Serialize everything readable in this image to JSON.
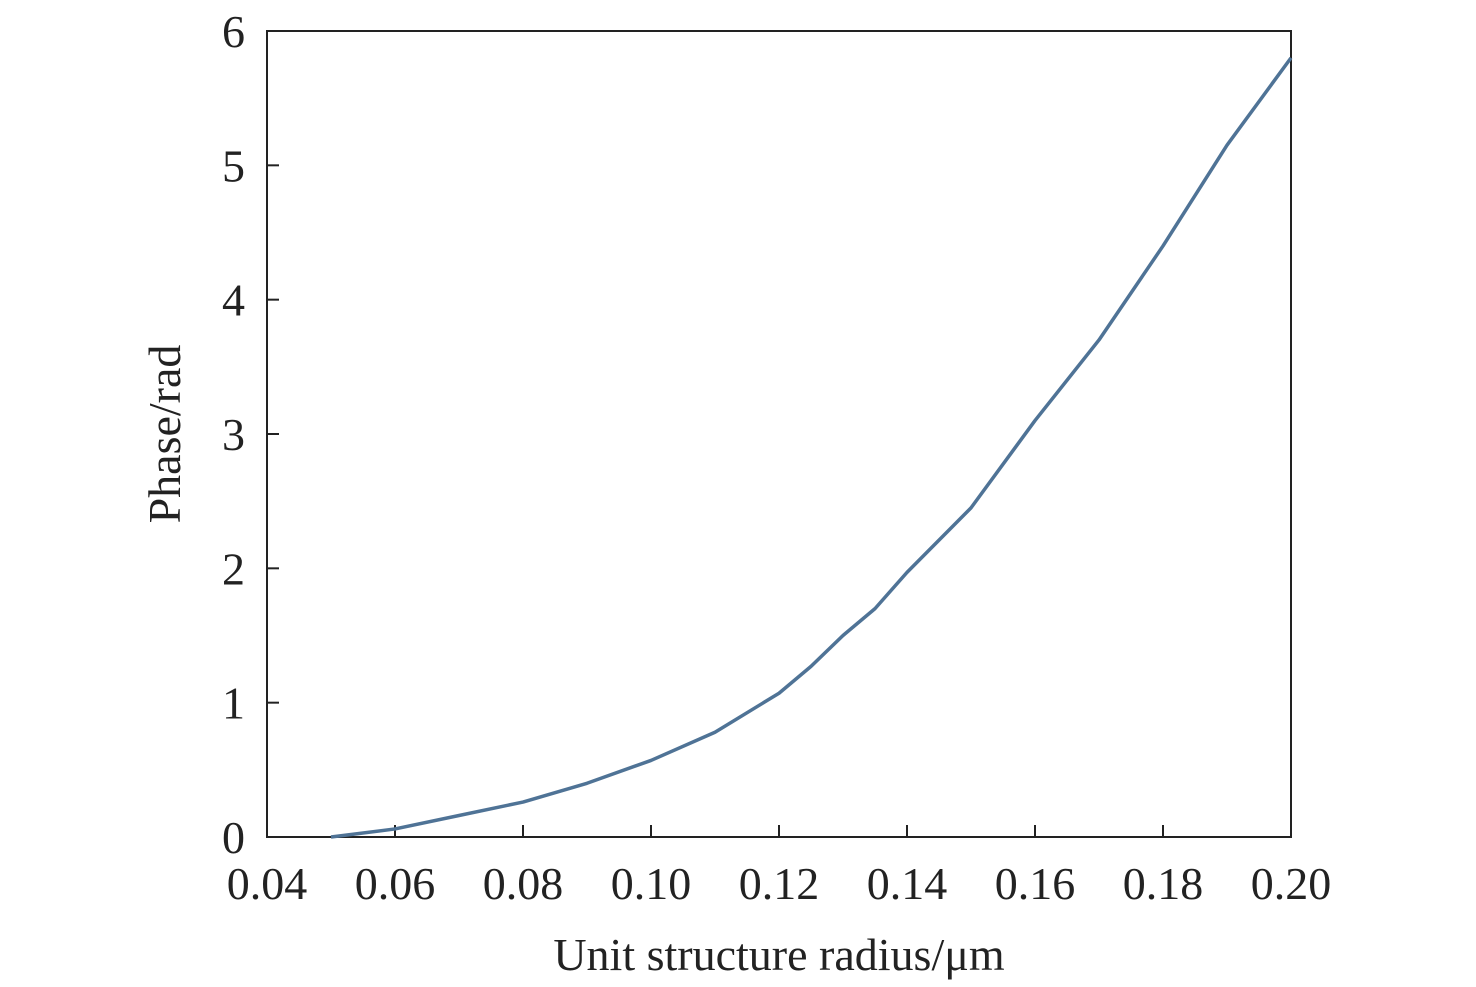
{
  "chart_data": {
    "type": "line",
    "x_label": "Unit structure radius/μm",
    "y_label": "Phase/rad",
    "x": [
      0.05,
      0.06,
      0.07,
      0.08,
      0.09,
      0.1,
      0.11,
      0.12,
      0.125,
      0.13,
      0.135,
      0.14,
      0.15,
      0.16,
      0.17,
      0.18,
      0.19,
      0.2
    ],
    "series": [
      {
        "color": "#4f7396",
        "values": [
          0,
          0.06,
          0.16,
          0.26,
          0.4,
          0.57,
          0.78,
          1.07,
          1.27,
          1.5,
          1.7,
          1.97,
          2.45,
          3.1,
          3.7,
          4.4,
          5.15,
          5.8
        ]
      }
    ],
    "xlim": [
      0.04,
      0.2
    ],
    "ylim": [
      0,
      6
    ],
    "xticks": [
      0.04,
      0.06,
      0.08,
      {
        "value": 0.1,
        "label": "0.10"
      },
      0.12,
      0.14,
      0.16,
      0.18,
      {
        "value": 0.2,
        "label": "0.20"
      }
    ],
    "yticks": [
      0,
      1,
      2,
      3,
      4,
      5,
      6
    ]
  }
}
